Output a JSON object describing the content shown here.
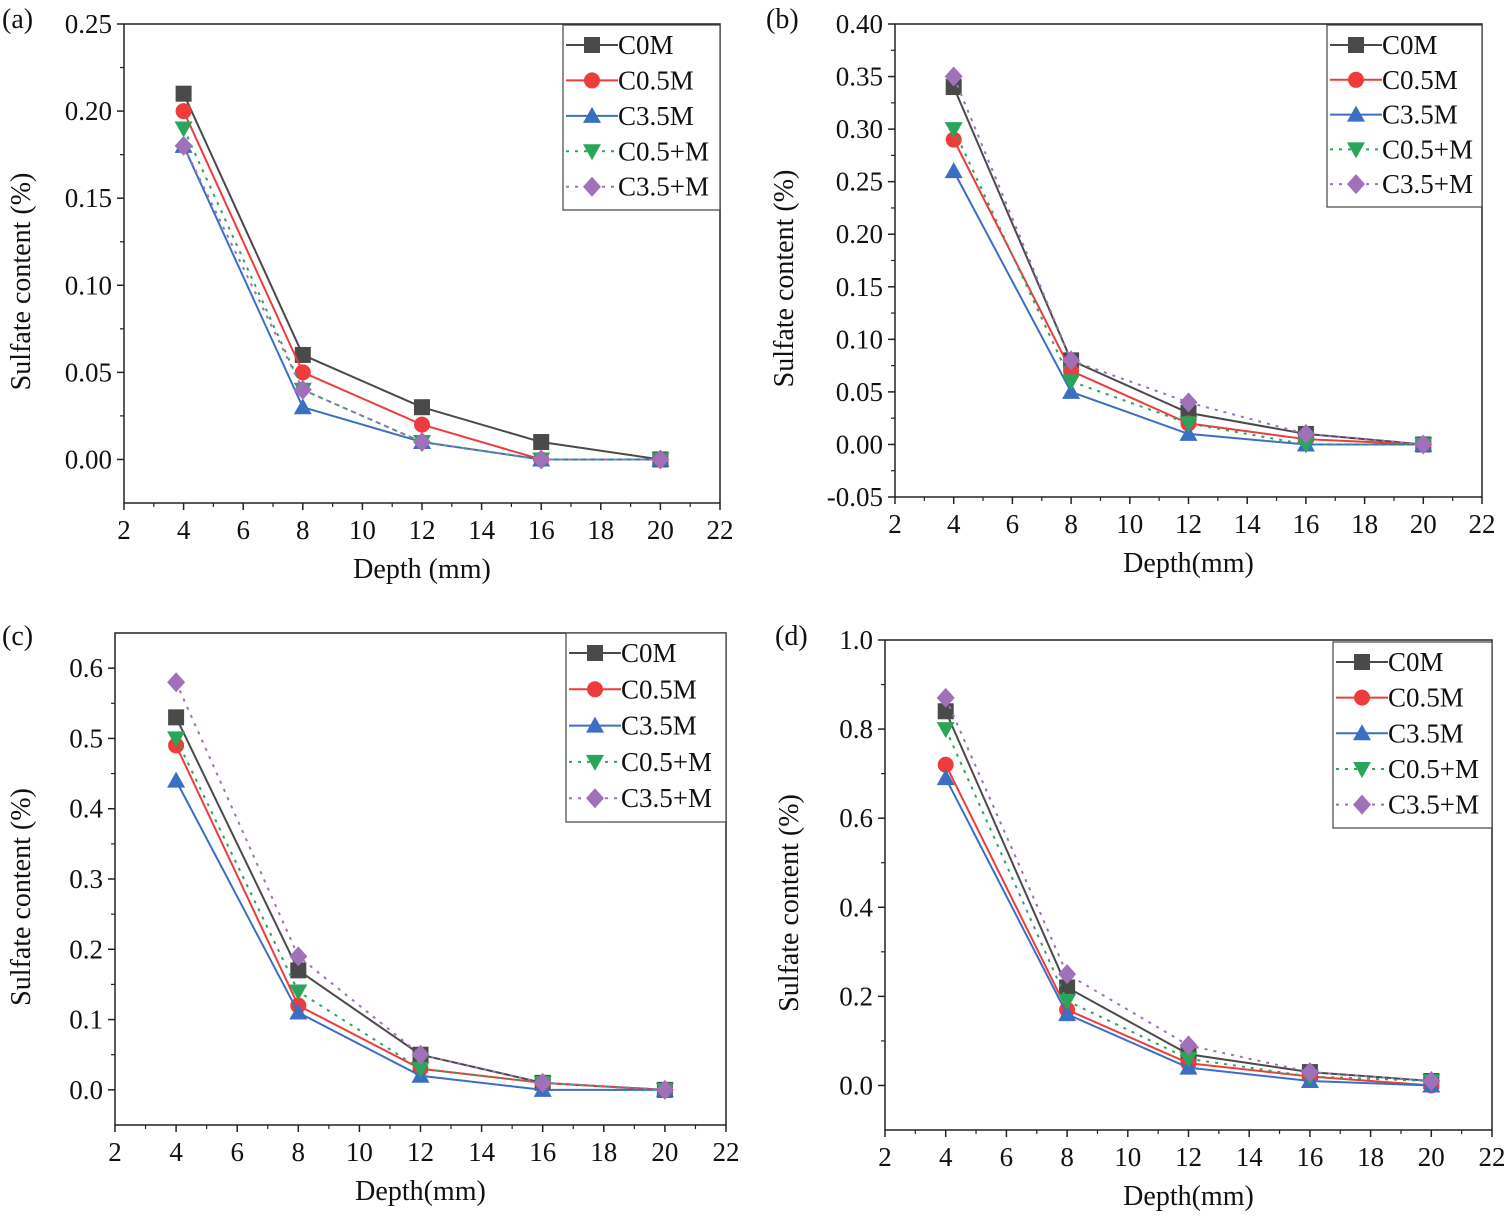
{
  "colors": {
    "C0M": "#4a4a4a",
    "C0.5M": "#ee3b3b",
    "C3.5M": "#3a6fc4",
    "C0.5+M": "#2aa65a",
    "C3.5+M": "#a070b8"
  },
  "chart_data": [
    {
      "panel_label": "(a)",
      "type": "line",
      "xlabel": "Depth (mm)",
      "ylabel": "Sulfate content (%)",
      "xlim": [
        2,
        22
      ],
      "ylim": [
        -0.025,
        0.25
      ],
      "xticks": [
        2,
        4,
        6,
        8,
        10,
        12,
        14,
        16,
        18,
        20,
        22
      ],
      "yticks": [
        0.0,
        0.05,
        0.1,
        0.15,
        0.2,
        0.25
      ],
      "ytick_decimals": 2,
      "x": [
        4,
        8,
        12,
        16,
        20
      ],
      "legend_position": "top-right",
      "series": [
        {
          "name": "C0M",
          "marker": "square",
          "dash": false,
          "values": [
            0.21,
            0.06,
            0.03,
            0.01,
            0
          ]
        },
        {
          "name": "C0.5M",
          "marker": "circle",
          "dash": false,
          "values": [
            0.2,
            0.05,
            0.02,
            0,
            0
          ]
        },
        {
          "name": "C3.5M",
          "marker": "triangle-up",
          "dash": false,
          "values": [
            0.18,
            0.03,
            0.01,
            0,
            0
          ]
        },
        {
          "name": "C0.5+M",
          "marker": "triangle-down",
          "dash": true,
          "values": [
            0.19,
            0.04,
            0.01,
            0,
            0
          ]
        },
        {
          "name": "C3.5+M",
          "marker": "diamond",
          "dash": true,
          "values": [
            0.18,
            0.04,
            0.01,
            0,
            0
          ]
        }
      ]
    },
    {
      "panel_label": "(b)",
      "type": "line",
      "xlabel": "Depth(mm)",
      "ylabel": "Sulfate content (%)",
      "xlim": [
        2,
        22
      ],
      "ylim": [
        -0.05,
        0.4
      ],
      "xticks": [
        2,
        4,
        6,
        8,
        10,
        12,
        14,
        16,
        18,
        20,
        22
      ],
      "yticks": [
        -0.05,
        0.0,
        0.05,
        0.1,
        0.15,
        0.2,
        0.25,
        0.3,
        0.35,
        0.4
      ],
      "ytick_decimals": 2,
      "x": [
        4,
        8,
        12,
        16,
        20
      ],
      "legend_position": "top-right",
      "series": [
        {
          "name": "C0M",
          "marker": "square",
          "dash": false,
          "values": [
            0.34,
            0.08,
            0.03,
            0.01,
            0
          ]
        },
        {
          "name": "C0.5M",
          "marker": "circle",
          "dash": false,
          "values": [
            0.29,
            0.07,
            0.02,
            0.005,
            0
          ]
        },
        {
          "name": "C3.5M",
          "marker": "triangle-up",
          "dash": false,
          "values": [
            0.26,
            0.05,
            0.01,
            0,
            0
          ]
        },
        {
          "name": "C0.5+M",
          "marker": "triangle-down",
          "dash": true,
          "values": [
            0.3,
            0.06,
            0.02,
            0,
            0
          ]
        },
        {
          "name": "C3.5+M",
          "marker": "diamond",
          "dash": true,
          "values": [
            0.35,
            0.08,
            0.04,
            0.01,
            0
          ]
        }
      ]
    },
    {
      "panel_label": "(c)",
      "type": "line",
      "xlabel": "Depth(mm)",
      "ylabel": "Sulfate content (%)",
      "xlim": [
        2,
        22
      ],
      "ylim": [
        -0.05,
        0.65
      ],
      "xticks": [
        2,
        4,
        6,
        8,
        10,
        12,
        14,
        16,
        18,
        20,
        22
      ],
      "yticks": [
        0.0,
        0.1,
        0.2,
        0.3,
        0.4,
        0.5,
        0.6
      ],
      "ytick_decimals": 1,
      "x": [
        4,
        8,
        12,
        16,
        20
      ],
      "legend_position": "top-right",
      "series": [
        {
          "name": "C0M",
          "marker": "square",
          "dash": false,
          "values": [
            0.53,
            0.17,
            0.05,
            0.01,
            0
          ]
        },
        {
          "name": "C0.5M",
          "marker": "circle",
          "dash": false,
          "values": [
            0.49,
            0.12,
            0.03,
            0.01,
            0
          ]
        },
        {
          "name": "C3.5M",
          "marker": "triangle-up",
          "dash": false,
          "values": [
            0.44,
            0.11,
            0.02,
            0,
            0
          ]
        },
        {
          "name": "C0.5+M",
          "marker": "triangle-down",
          "dash": true,
          "values": [
            0.5,
            0.14,
            0.03,
            0.01,
            0
          ]
        },
        {
          "name": "C3.5+M",
          "marker": "diamond",
          "dash": true,
          "values": [
            0.58,
            0.19,
            0.05,
            0.01,
            0
          ]
        }
      ]
    },
    {
      "panel_label": "(d)",
      "type": "line",
      "xlabel": "Depth(mm)",
      "ylabel": "Sulfate content (%)",
      "xlim": [
        2,
        22
      ],
      "ylim": [
        -0.1,
        1.0
      ],
      "xticks": [
        2,
        4,
        6,
        8,
        10,
        12,
        14,
        16,
        18,
        20,
        22
      ],
      "yticks": [
        0.0,
        0.2,
        0.4,
        0.6,
        0.8,
        1.0
      ],
      "ytick_decimals": 1,
      "x": [
        4,
        8,
        12,
        16,
        20
      ],
      "legend_position": "top-right",
      "series": [
        {
          "name": "C0M",
          "marker": "square",
          "dash": false,
          "values": [
            0.84,
            0.22,
            0.07,
            0.03,
            0.01
          ]
        },
        {
          "name": "C0.5M",
          "marker": "circle",
          "dash": false,
          "values": [
            0.72,
            0.17,
            0.05,
            0.02,
            0
          ]
        },
        {
          "name": "C3.5M",
          "marker": "triangle-up",
          "dash": false,
          "values": [
            0.69,
            0.16,
            0.04,
            0.01,
            0
          ]
        },
        {
          "name": "C0.5+M",
          "marker": "triangle-down",
          "dash": true,
          "values": [
            0.8,
            0.19,
            0.06,
            0.02,
            0.01
          ]
        },
        {
          "name": "C3.5+M",
          "marker": "diamond",
          "dash": true,
          "values": [
            0.87,
            0.25,
            0.09,
            0.03,
            0.01
          ]
        }
      ]
    }
  ]
}
